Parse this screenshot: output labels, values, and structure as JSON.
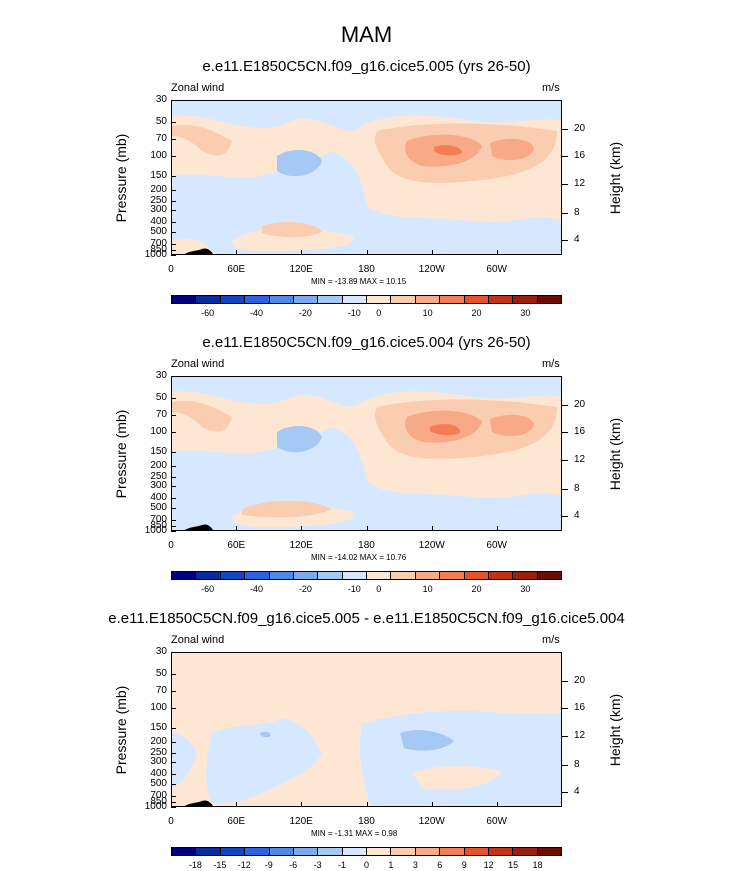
{
  "title": "MAM",
  "chart_data": [
    {
      "type": "heatmap",
      "title": "e.e11.E1850C5CN.f09_g16.cice5.005 (yrs 26-50)",
      "left_label": "Zonal wind",
      "right_label": "m/s",
      "ylabel": "Pressure (mb)",
      "y2label": "Height (km)",
      "y_ticks": [
        "30",
        "50",
        "70",
        "100",
        "150",
        "200",
        "250",
        "300",
        "400",
        "500",
        "700",
        "850",
        "1000"
      ],
      "y2_ticks": [
        "20",
        "16",
        "12",
        "8",
        "4"
      ],
      "x_ticks": [
        "0",
        "60E",
        "120E",
        "180",
        "120W",
        "60W"
      ],
      "stats": "MIN = -13.89  MAX =  10.15",
      "colorbar_labels": [
        "-60",
        "-40",
        "-20",
        "-10",
        "0",
        "10",
        "20",
        "30"
      ],
      "colorbar_colors": [
        "#000080",
        "#0a2aa0",
        "#1444c6",
        "#2d63e0",
        "#4f8ae8",
        "#7aa9ef",
        "#a6c8f5",
        "#d6e8ff",
        "#fde7d3",
        "#fbcdb0",
        "#f8a987",
        "#f57d55",
        "#e8522a",
        "#c23215",
        "#99200e",
        "#6b0d05"
      ]
    },
    {
      "type": "heatmap",
      "title": "e.e11.E1850C5CN.f09_g16.cice5.004 (yrs 26-50)",
      "left_label": "Zonal wind",
      "right_label": "m/s",
      "ylabel": "Pressure (mb)",
      "y2label": "Height (km)",
      "y_ticks": [
        "30",
        "50",
        "70",
        "100",
        "150",
        "200",
        "250",
        "300",
        "400",
        "500",
        "700",
        "850",
        "1000"
      ],
      "y2_ticks": [
        "20",
        "16",
        "12",
        "8",
        "4"
      ],
      "x_ticks": [
        "0",
        "60E",
        "120E",
        "180",
        "120W",
        "60W"
      ],
      "stats": "MIN = -14.02  MAX =  10.76",
      "colorbar_labels": [
        "-60",
        "-40",
        "-20",
        "-10",
        "0",
        "10",
        "20",
        "30"
      ],
      "colorbar_colors": [
        "#000080",
        "#0a2aa0",
        "#1444c6",
        "#2d63e0",
        "#4f8ae8",
        "#7aa9ef",
        "#a6c8f5",
        "#d6e8ff",
        "#fde7d3",
        "#fbcdb0",
        "#f8a987",
        "#f57d55",
        "#e8522a",
        "#c23215",
        "#99200e",
        "#6b0d05"
      ]
    },
    {
      "type": "heatmap",
      "title": "e.e11.E1850C5CN.f09_g16.cice5.005 - e.e11.E1850C5CN.f09_g16.cice5.004",
      "left_label": "Zonal wind",
      "right_label": "m/s",
      "ylabel": "Pressure (mb)",
      "y2label": "Height (km)",
      "y_ticks": [
        "30",
        "50",
        "70",
        "100",
        "150",
        "200",
        "250",
        "300",
        "400",
        "500",
        "700",
        "850",
        "1000"
      ],
      "y2_ticks": [
        "20",
        "16",
        "12",
        "8",
        "4"
      ],
      "x_ticks": [
        "0",
        "60E",
        "120E",
        "180",
        "120W",
        "60W"
      ],
      "stats": "MIN = -1.31  MAX =  0.98",
      "colorbar_labels": [
        "-18",
        "-15",
        "-12",
        "-9",
        "-6",
        "-3",
        "-1",
        "0",
        "1",
        "3",
        "6",
        "9",
        "12",
        "15",
        "18"
      ],
      "colorbar_colors": [
        "#000080",
        "#0a2aa0",
        "#1444c6",
        "#2d63e0",
        "#4f8ae8",
        "#7aa9ef",
        "#a6c8f5",
        "#d6e8ff",
        "#fde7d3",
        "#fbcdb0",
        "#f8a987",
        "#f57d55",
        "#e8522a",
        "#c23215",
        "#99200e",
        "#6b0d05"
      ]
    }
  ]
}
